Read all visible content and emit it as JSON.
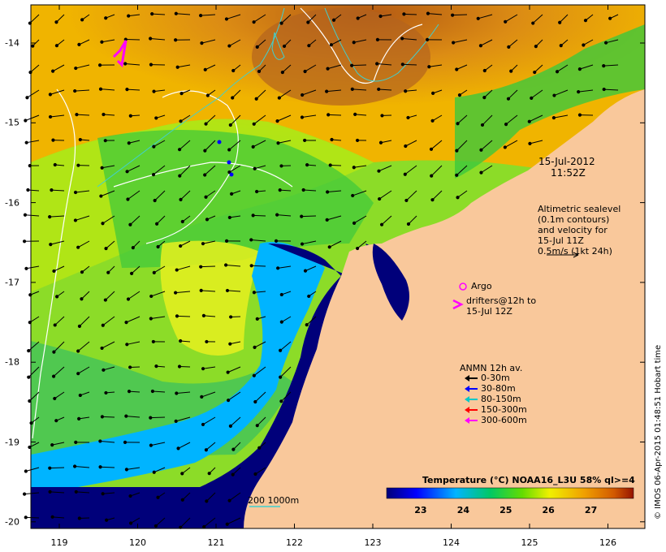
{
  "map": {
    "timestamp_date": "15-Jul-2012",
    "timestamp_time": "11:52Z",
    "altimetry_note": [
      "Altimetric sealevel",
      "(0.1m contours)",
      "and velocity for",
      "15-Jul 11Z",
      "0.5m/s (1kt 24h)"
    ],
    "argo_label": "Argo",
    "drifters_label": [
      "drifters@12h to",
      "15-Jul 12Z"
    ],
    "anmn_title": "ANMN 12h av.",
    "anmn_depths": [
      {
        "label": "0-30m",
        "color": "#000000"
      },
      {
        "label": "30-80m",
        "color": "#0000ff"
      },
      {
        "label": "80-150m",
        "color": "#00c8c8"
      },
      {
        "label": "150-300m",
        "color": "#ff0000"
      },
      {
        "label": "300-600m",
        "color": "#ff00ff"
      }
    ],
    "bathymetry_label": "200  1000m",
    "colorbar_title": "Temperature (°C) NOAA16_L3U 58% ql>=4",
    "colorbar_ticks": [
      "23",
      "24",
      "25",
      "26",
      "27"
    ],
    "colorbar_range": [
      22.2,
      28.0
    ],
    "lon_ticks": [
      "119",
      "120",
      "121",
      "122",
      "123",
      "124",
      "125",
      "126"
    ],
    "lat_ticks": [
      "-14",
      "-15",
      "-16",
      "-17",
      "-18",
      "-19",
      "-20"
    ],
    "credit": "© IMOS 06-Apr-2015 01:48:51 Hobart time",
    "colors": {
      "land": "#f9c89b",
      "deep_blue": "#00007a",
      "cyan": "#00b4ff",
      "green": "#3cc83c",
      "yellow": "#e6f01e",
      "orange": "#f0a000",
      "brown": "#b45a14"
    }
  }
}
